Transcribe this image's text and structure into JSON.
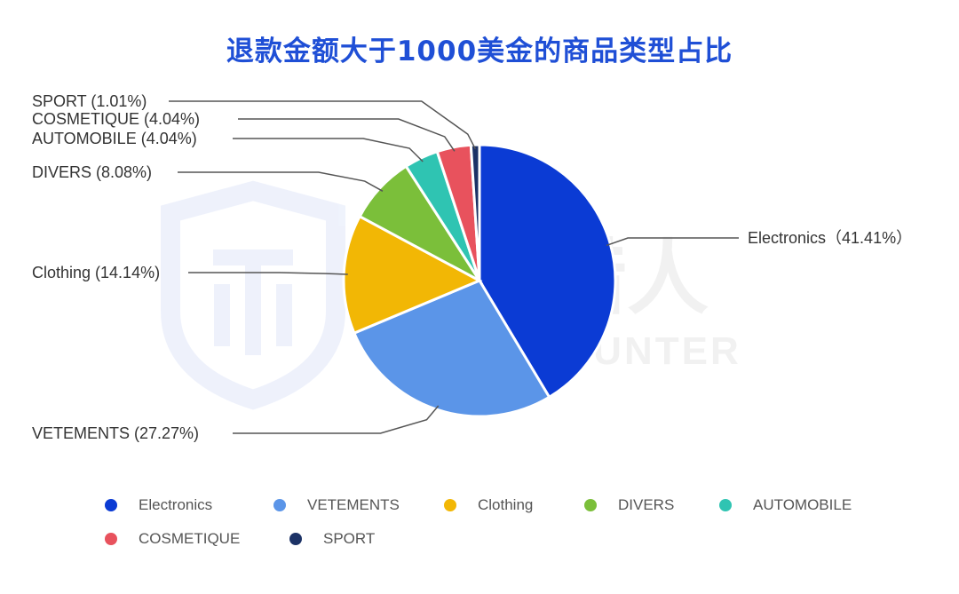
{
  "chart_data": {
    "type": "pie",
    "title": "退款金额大于1000美金的商品类型占比",
    "slices": [
      {
        "label": "Electronics",
        "value": 41.41,
        "display": "Electronics（41.41%）",
        "color": "#0b3bd4"
      },
      {
        "label": "VETEMENTS",
        "value": 27.27,
        "display": "VETEMENTS (27.27%)",
        "color": "#5b95e8"
      },
      {
        "label": "Clothing",
        "value": 14.14,
        "display": "Clothing (14.14%)",
        "color": "#f2b705"
      },
      {
        "label": "DIVERS",
        "value": 8.08,
        "display": "DIVERS (8.08%)",
        "color": "#7bbf3a"
      },
      {
        "label": "AUTOMOBILE",
        "value": 4.04,
        "display": "AUTOMOBILE (4.04%)",
        "color": "#2fc4b2"
      },
      {
        "label": "COSMETIQUE",
        "value": 4.04,
        "display": "COSMETIQUE (4.04%)",
        "color": "#e8525d"
      },
      {
        "label": "SPORT",
        "value": 1.01,
        "display": "SPORT (1.01%)",
        "color": "#1c3266"
      }
    ],
    "legend_position": "bottom",
    "watermark": "威胁猎人 THREAT HUNTER"
  }
}
